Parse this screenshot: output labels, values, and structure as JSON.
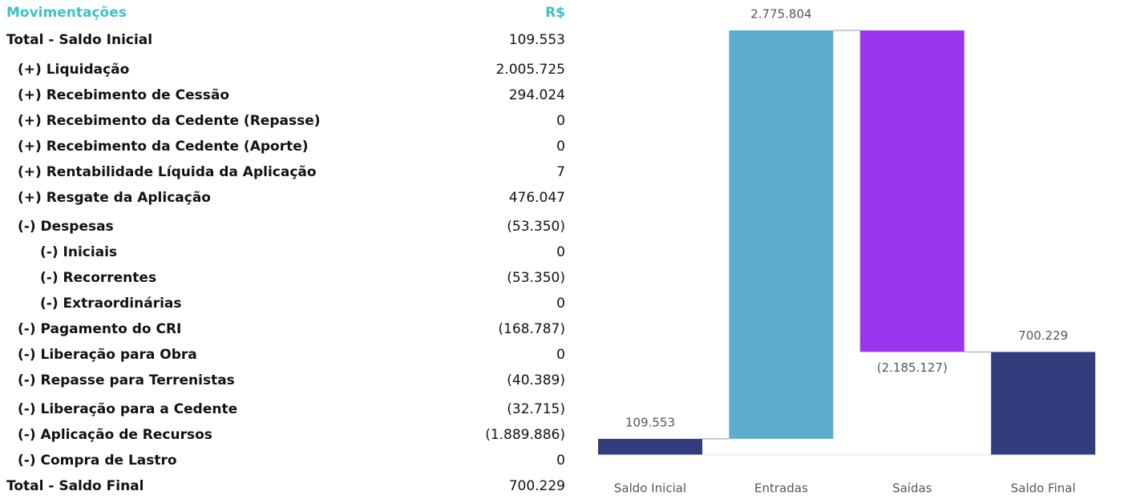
{
  "table": {
    "header": [
      "Movimentações",
      "R$"
    ],
    "rows": [
      [
        "Total - Saldo Inicial",
        "109.553"
      ],
      [
        "(+) Liquidação",
        "2.005.725"
      ],
      [
        "(+) Recebimento de Cessão",
        "294.024"
      ],
      [
        "(+) Recebimento da Cedente (Repasse)",
        "0"
      ],
      [
        "(+) Recebimento da Cedente (Aporte)",
        "0"
      ],
      [
        "(+) Rentabilidade Líquida da Aplicação",
        "7"
      ],
      [
        "(+) Resgate da Aplicação",
        "476.047"
      ],
      [
        "(-) Despesas",
        "(53.350)"
      ],
      [
        "(-) Iniciais",
        "0"
      ],
      [
        "(-) Recorrentes",
        "(53.350)"
      ],
      [
        "(-) Extraordinárias",
        "0"
      ],
      [
        "(-) Pagamento do CRI",
        "(168.787)"
      ],
      [
        "(-) Liberação para Obra",
        "0"
      ],
      [
        "(-) Repasse para Terrenistas",
        "(40.389)"
      ],
      [
        "(-) Liberação para a Cedente",
        "(32.715)"
      ],
      [
        "(-) Aplicação de Recursos",
        "(1.889.886)"
      ],
      [
        "(-) Compra de Lastro",
        "0"
      ],
      [
        "Total - Saldo Final",
        "700.229"
      ]
    ]
  },
  "chart_data": {
    "type": "waterfall",
    "categories": [
      "Saldo Inicial",
      "Entradas",
      "Saídas",
      "Saldo Final"
    ],
    "values": [
      109553,
      2775804,
      -2185127,
      700229
    ],
    "value_labels": [
      "109.553",
      "2.775.804",
      "(2.185.127)",
      "700.229"
    ],
    "measure": [
      "absolute",
      "relative",
      "relative",
      "total"
    ],
    "colors": [
      "#333d7e",
      "#5cacce",
      "#9b35ef",
      "#333d7e"
    ],
    "ylim": [
      0,
      2900000
    ]
  }
}
